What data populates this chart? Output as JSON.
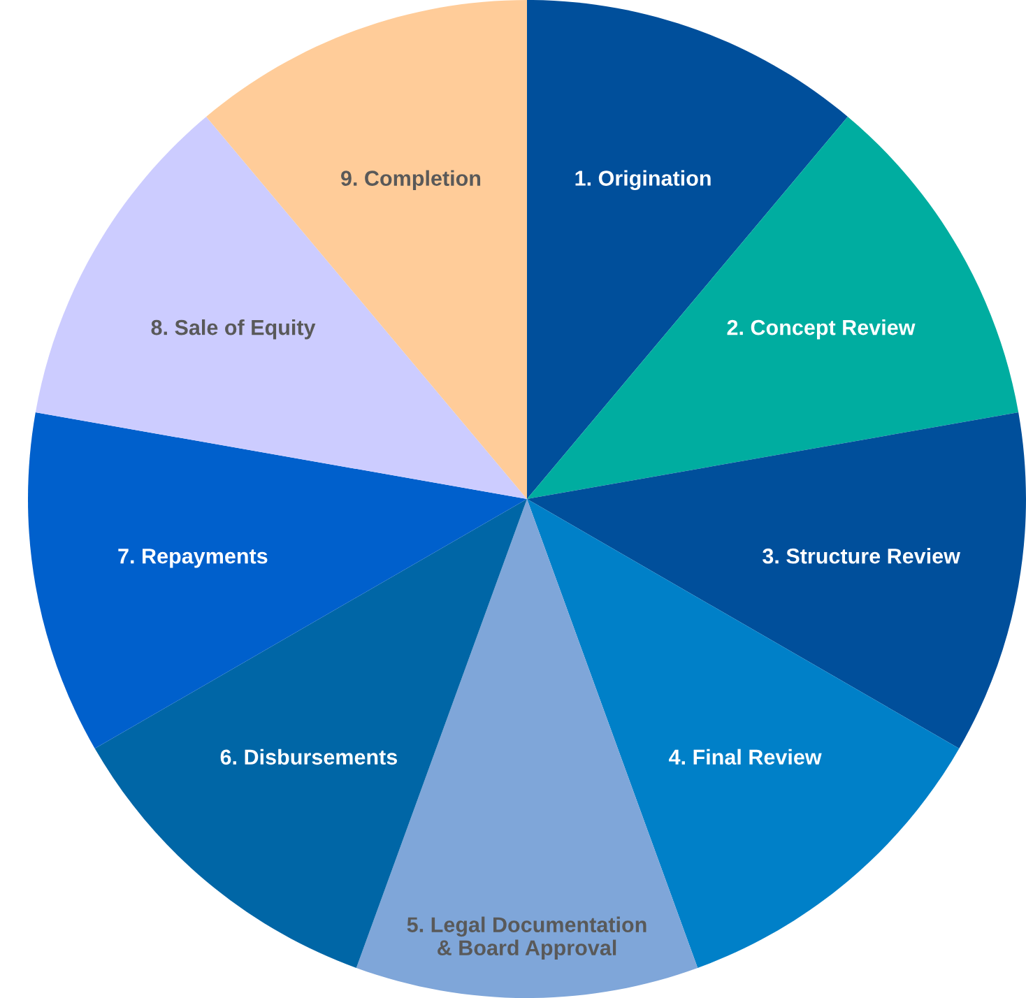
{
  "chart_data": {
    "type": "pie",
    "categories": [
      "1. Origination",
      "2. Concept Review",
      "3. Structure Review",
      "4. Final Review",
      "5. Legal Documentation\n& Board Approval",
      "6. Disbursements",
      "7. Repayments",
      "8. Sale of Equity",
      "9. Completion"
    ],
    "values": [
      11.11,
      11.11,
      11.11,
      11.11,
      11.11,
      11.11,
      11.11,
      11.11,
      11.11
    ],
    "colors": [
      "#004f9b",
      "#00ada0",
      "#004f9b",
      "#0080c8",
      "#7fa6d9",
      "#0066a6",
      "#0060cc",
      "#ccccff",
      "#ffcc99"
    ],
    "legend": false
  }
}
